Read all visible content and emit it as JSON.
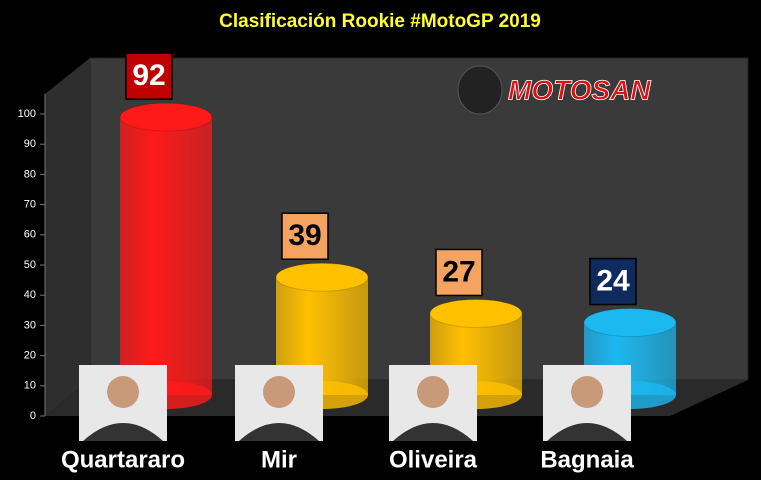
{
  "chart_data": {
    "type": "cylinder",
    "title": "Clasificación Rookie #MotoGP 2019",
    "logo_text": "MOTOSAN",
    "categories": [
      "Quartararo",
      "Mir",
      "Oliveira",
      "Bagnaia"
    ],
    "values": [
      92,
      39,
      27,
      24
    ],
    "colors": [
      "#ff1a1a",
      "#ffc000",
      "#ffc000",
      "#1cb8f0"
    ],
    "label_colors": [
      "#c00000",
      "#f4a460",
      "#f4a460",
      "#0f2a5c"
    ],
    "ylim": [
      0,
      100
    ],
    "yticks": [
      0,
      10,
      20,
      30,
      40,
      50,
      60,
      70,
      80,
      90,
      100
    ],
    "grid": false
  }
}
